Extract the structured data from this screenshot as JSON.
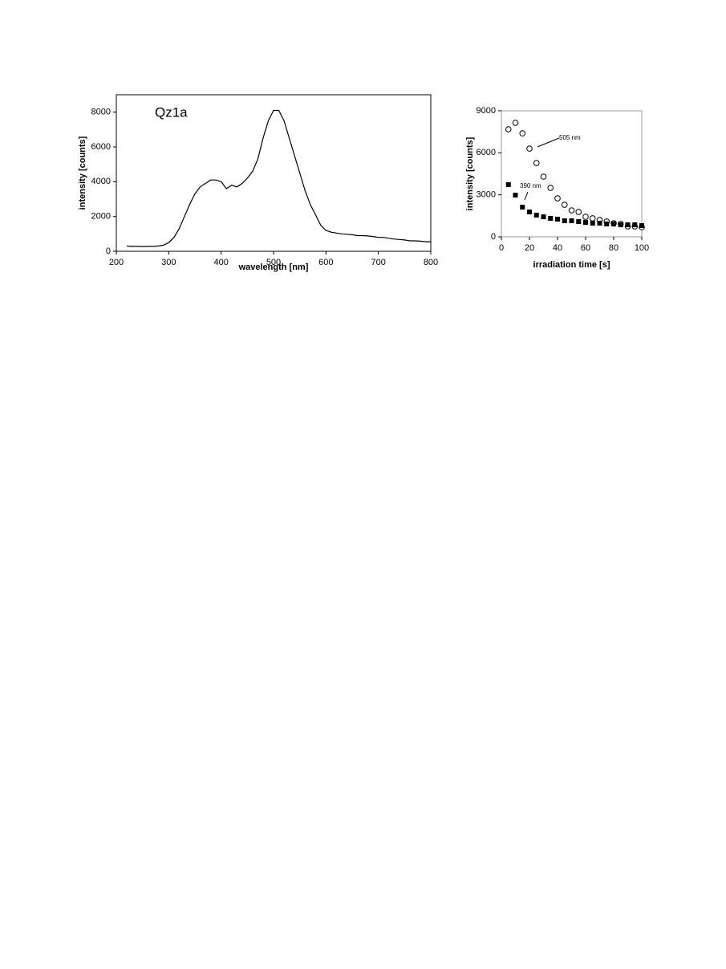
{
  "chart_data": [
    {
      "type": "line",
      "annotations": [
        "Qz1a"
      ],
      "x_label": "wavelength [nm]",
      "y_label": "intensity [counts]",
      "xlim": [
        200,
        800
      ],
      "ylim": [
        0,
        9000
      ],
      "xticks": [
        200,
        300,
        400,
        500,
        600,
        700,
        800
      ],
      "yticks": [
        0,
        2000,
        4000,
        6000,
        8000
      ],
      "x": [
        220,
        230,
        240,
        250,
        260,
        270,
        280,
        290,
        300,
        310,
        320,
        330,
        340,
        350,
        360,
        370,
        380,
        390,
        400,
        410,
        420,
        430,
        440,
        450,
        460,
        470,
        480,
        490,
        500,
        510,
        520,
        530,
        540,
        550,
        560,
        570,
        580,
        590,
        600,
        610,
        620,
        630,
        640,
        650,
        660,
        670,
        680,
        690,
        700,
        710,
        720,
        730,
        740,
        750,
        760,
        770,
        780,
        790,
        800
      ],
      "series": [
        {
          "color": "#000000",
          "values": [
            300,
            280,
            280,
            270,
            280,
            280,
            300,
            350,
            500,
            800,
            1300,
            2000,
            2700,
            3300,
            3700,
            3900,
            4100,
            4100,
            4000,
            3600,
            3800,
            3700,
            3900,
            4200,
            4600,
            5300,
            6500,
            7500,
            8100,
            8100,
            7500,
            6500,
            5500,
            4500,
            3500,
            2700,
            2100,
            1500,
            1200,
            1100,
            1050,
            1000,
            980,
            950,
            900,
            900,
            880,
            850,
            800,
            800,
            750,
            700,
            680,
            650,
            600,
            600,
            580,
            550,
            550
          ]
        }
      ]
    },
    {
      "type": "scatter",
      "x_label": "irradiation time [s]",
      "y_label": "intensity [counts]",
      "xlim": [
        0,
        100
      ],
      "ylim": [
        0,
        9000
      ],
      "xticks": [
        0,
        20,
        40,
        60,
        80,
        100
      ],
      "yticks": [
        0,
        3000,
        6000,
        9000
      ],
      "x": [
        5,
        10,
        15,
        20,
        25,
        30,
        35,
        40,
        45,
        50,
        55,
        60,
        65,
        70,
        75,
        80,
        85,
        90,
        95,
        100
      ],
      "series": [
        {
          "name": "505 nm",
          "color": "#000000",
          "marker": "circle-open",
          "values": [
            7680,
            8140,
            7390,
            6300,
            5270,
            4300,
            3500,
            2750,
            2290,
            1890,
            1780,
            1430,
            1320,
            1200,
            1090,
            975,
            920,
            745,
            745,
            690
          ]
        },
        {
          "name": "390 nm",
          "color": "#000000",
          "marker": "square",
          "values": [
            3730,
            2980,
            2120,
            1780,
            1550,
            1430,
            1320,
            1260,
            1150,
            1150,
            1090,
            1030,
            975,
            975,
            920,
            920,
            860,
            860,
            860,
            800
          ]
        }
      ]
    }
  ]
}
